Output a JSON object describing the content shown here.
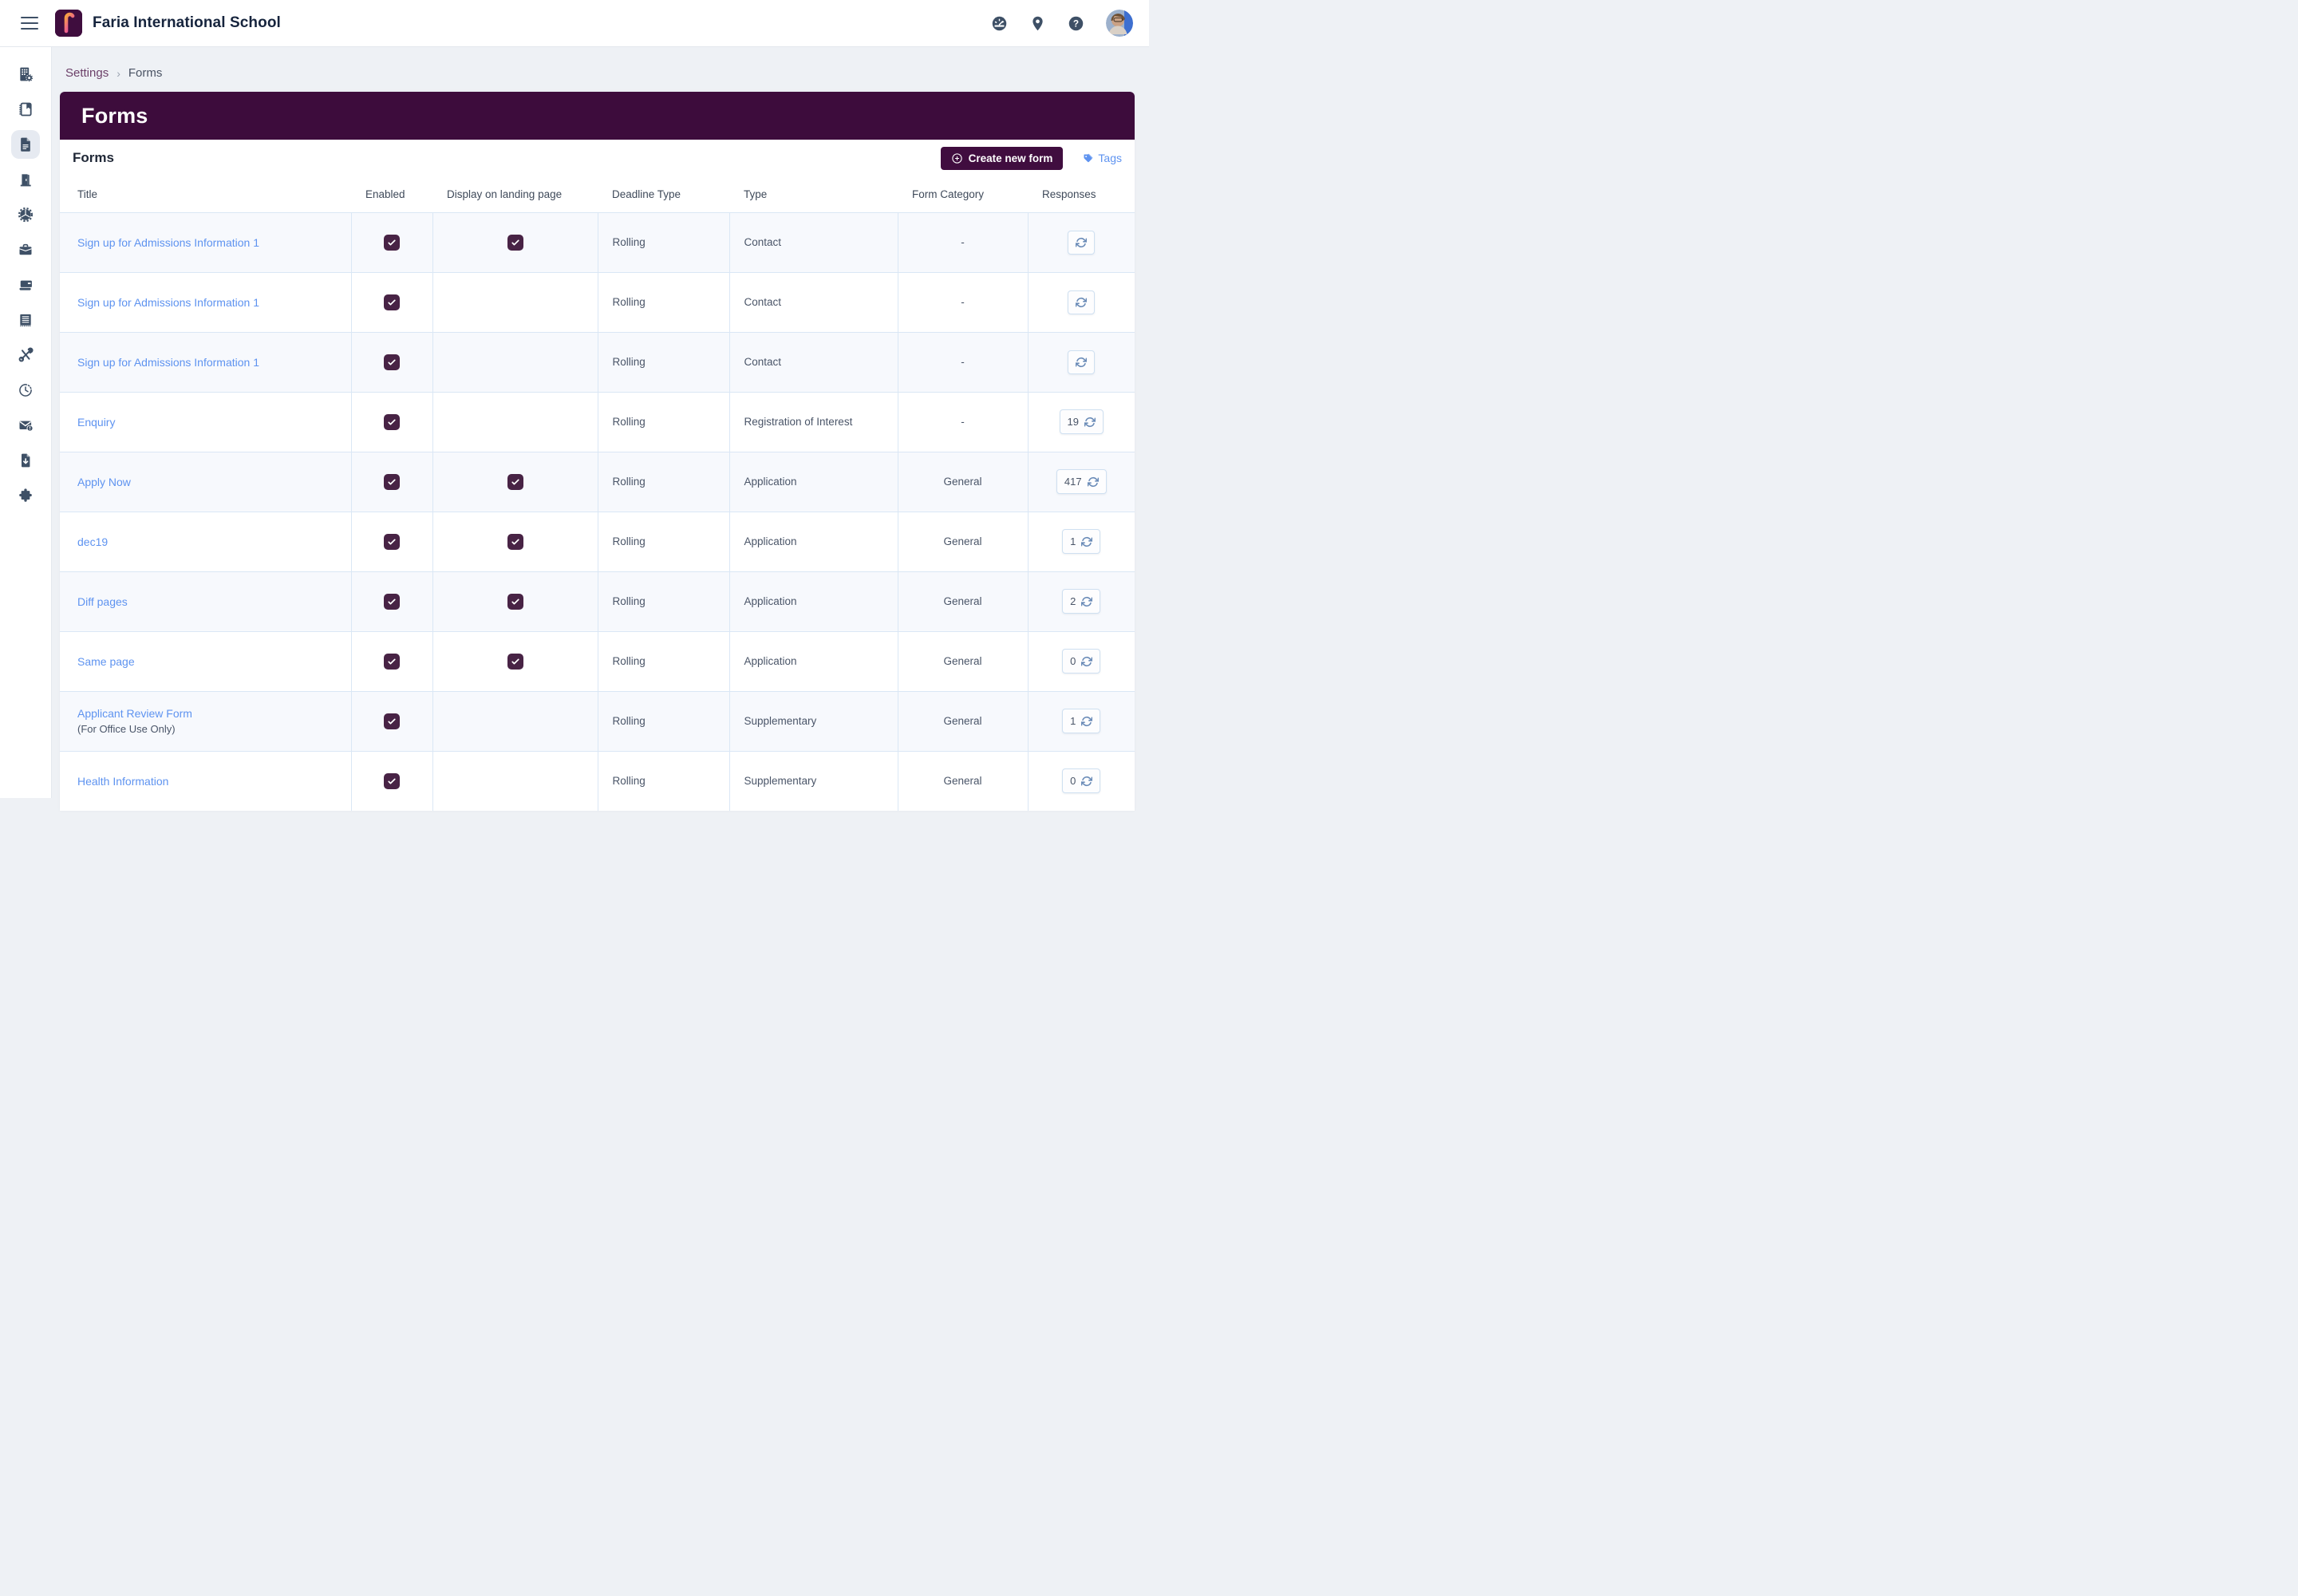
{
  "topbar": {
    "school_name": "Faria International School",
    "action_icons": [
      "dashboard-gauge-icon",
      "location-pin-icon",
      "help-icon"
    ]
  },
  "sidebar": {
    "active_index": 2,
    "items": [
      {
        "id": "school",
        "icon": "building-gear-icon"
      },
      {
        "id": "directory",
        "icon": "contacts-book-icon"
      },
      {
        "id": "forms",
        "icon": "forms-document-icon"
      },
      {
        "id": "admissions",
        "icon": "door-icon"
      },
      {
        "id": "settings",
        "icon": "gear-pie-icon"
      },
      {
        "id": "workflow",
        "icon": "briefcase-icon"
      },
      {
        "id": "payments",
        "icon": "credit-card-icon"
      },
      {
        "id": "news",
        "icon": "newspaper-icon"
      },
      {
        "id": "tools",
        "icon": "tools-icon"
      },
      {
        "id": "history",
        "icon": "clock-icon"
      },
      {
        "id": "messages",
        "icon": "mail-alert-icon"
      },
      {
        "id": "exports",
        "icon": "file-download-icon"
      },
      {
        "id": "integrations",
        "icon": "puzzle-icon"
      }
    ]
  },
  "breadcrumb": {
    "settings": "Settings",
    "separator": "›",
    "current": "Forms"
  },
  "banner": {
    "title": "Forms"
  },
  "section": {
    "heading": "Forms",
    "create_button": "Create new form",
    "tags_link": "Tags"
  },
  "colors": {
    "banner_purple": "#3d0c3c",
    "button_purple": "#400d3f",
    "checkbox_purple": "#482345",
    "link_blue": "#5e93f0"
  },
  "table": {
    "headers": [
      "Title",
      "Enabled",
      "Display on landing page",
      "Deadline Type",
      "Type",
      "Form Category",
      "Responses"
    ],
    "rows": [
      {
        "title": "Sign up for Admissions Information 1",
        "subtitle": "",
        "enabled": true,
        "display_on_landing": true,
        "deadline_type": "Rolling",
        "type": "Contact",
        "form_category": "-",
        "responses": null
      },
      {
        "title": "Sign up for Admissions Information 1",
        "subtitle": "",
        "enabled": true,
        "display_on_landing": false,
        "deadline_type": "Rolling",
        "type": "Contact",
        "form_category": "-",
        "responses": null
      },
      {
        "title": "Sign up for Admissions Information 1",
        "subtitle": "",
        "enabled": true,
        "display_on_landing": false,
        "deadline_type": "Rolling",
        "type": "Contact",
        "form_category": "-",
        "responses": null
      },
      {
        "title": "Enquiry",
        "subtitle": "",
        "enabled": true,
        "display_on_landing": false,
        "deadline_type": "Rolling",
        "type": "Registration of Interest",
        "form_category": "-",
        "responses": 19
      },
      {
        "title": "Apply Now",
        "subtitle": "",
        "enabled": true,
        "display_on_landing": true,
        "deadline_type": "Rolling",
        "type": "Application",
        "form_category": "General",
        "responses": 417
      },
      {
        "title": "dec19",
        "subtitle": "",
        "enabled": true,
        "display_on_landing": true,
        "deadline_type": "Rolling",
        "type": "Application",
        "form_category": "General",
        "responses": 1
      },
      {
        "title": "Diff pages",
        "subtitle": "",
        "enabled": true,
        "display_on_landing": true,
        "deadline_type": "Rolling",
        "type": "Application",
        "form_category": "General",
        "responses": 2
      },
      {
        "title": "Same page",
        "subtitle": "",
        "enabled": true,
        "display_on_landing": true,
        "deadline_type": "Rolling",
        "type": "Application",
        "form_category": "General",
        "responses": 0
      },
      {
        "title": "Applicant Review Form",
        "subtitle": "(For Office Use Only)",
        "enabled": true,
        "display_on_landing": false,
        "deadline_type": "Rolling",
        "type": "Supplementary",
        "form_category": "General",
        "responses": 1
      },
      {
        "title": "Health Information",
        "subtitle": "",
        "enabled": true,
        "display_on_landing": false,
        "deadline_type": "Rolling",
        "type": "Supplementary",
        "form_category": "General",
        "responses": 0
      }
    ]
  }
}
